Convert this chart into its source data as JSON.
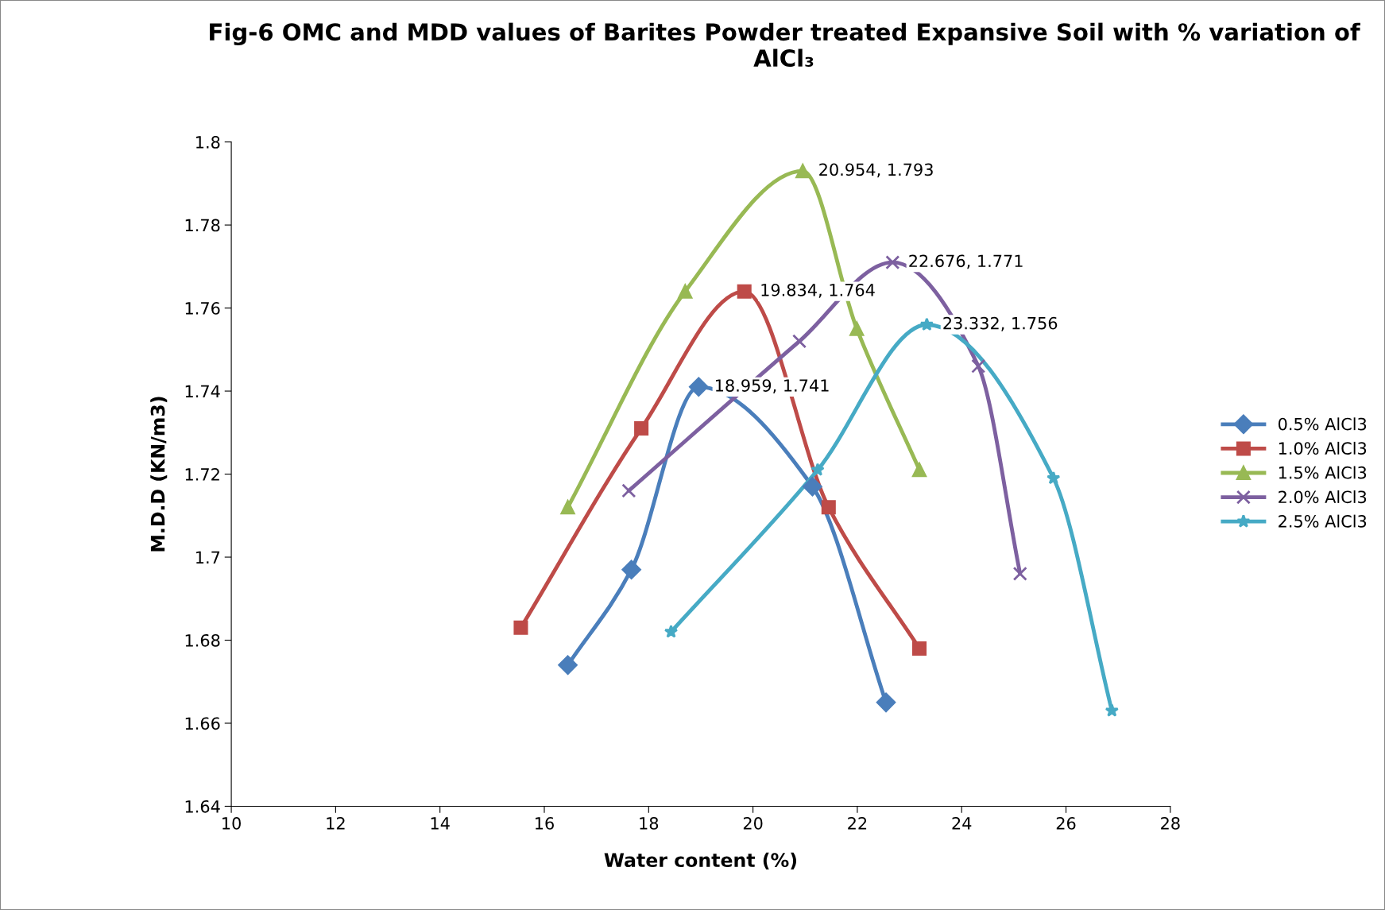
{
  "chart_data": {
    "type": "line",
    "title": "Fig-6 OMC and MDD values of Barites Powder treated Expansive Soil with % variation of AlCl₃",
    "xlabel": "Water content (%)",
    "ylabel": "M.D.D (KN/m3)",
    "xlim": [
      10,
      28
    ],
    "xticks": [
      10,
      12,
      14,
      16,
      18,
      20,
      22,
      24,
      26,
      28
    ],
    "ylim": [
      1.64,
      1.8
    ],
    "yticks": [
      1.64,
      1.66,
      1.68,
      1.7,
      1.72,
      1.74,
      1.76,
      1.78,
      1.8
    ],
    "grid": false,
    "legend": "right",
    "line_style": "solid",
    "series": [
      {
        "name": "0.5% AlCl3",
        "color": "#4a7ebb",
        "marker": "diamond",
        "x": [
          16.45,
          17.67,
          18.959,
          21.14,
          22.55
        ],
        "values": [
          1.674,
          1.697,
          1.741,
          1.717,
          1.665
        ]
      },
      {
        "name": "1.0% AlCl3",
        "color": "#be4b48",
        "marker": "square",
        "x": [
          15.55,
          17.86,
          19.834,
          21.45,
          23.19
        ],
        "values": [
          1.683,
          1.731,
          1.764,
          1.712,
          1.678
        ]
      },
      {
        "name": "1.5% AlCl3",
        "color": "#98b954",
        "marker": "triangle",
        "x": [
          16.45,
          18.7,
          20.954,
          21.99,
          23.19
        ],
        "values": [
          1.712,
          1.764,
          1.793,
          1.755,
          1.721
        ]
      },
      {
        "name": "2.0% AlCl3",
        "color": "#7d60a0",
        "marker": "cross",
        "x": [
          17.62,
          20.89,
          22.676,
          24.32,
          25.12
        ],
        "values": [
          1.716,
          1.752,
          1.771,
          1.746,
          1.696
        ]
      },
      {
        "name": "2.5% AlCl3",
        "color": "#46aac5",
        "marker": "star",
        "x": [
          18.43,
          21.24,
          23.332,
          25.76,
          26.88
        ],
        "values": [
          1.682,
          1.721,
          1.756,
          1.719,
          1.663
        ]
      }
    ],
    "annotations": [
      {
        "text": "18.959, 1.741",
        "x": 18.959,
        "y": 1.741
      },
      {
        "text": "19.834, 1.764",
        "x": 19.834,
        "y": 1.764
      },
      {
        "text": "20.954, 1.793",
        "x": 20.954,
        "y": 1.793
      },
      {
        "text": "22.676, 1.771",
        "x": 22.676,
        "y": 1.771
      },
      {
        "text": "23.332, 1.756",
        "x": 23.332,
        "y": 1.756
      }
    ]
  }
}
